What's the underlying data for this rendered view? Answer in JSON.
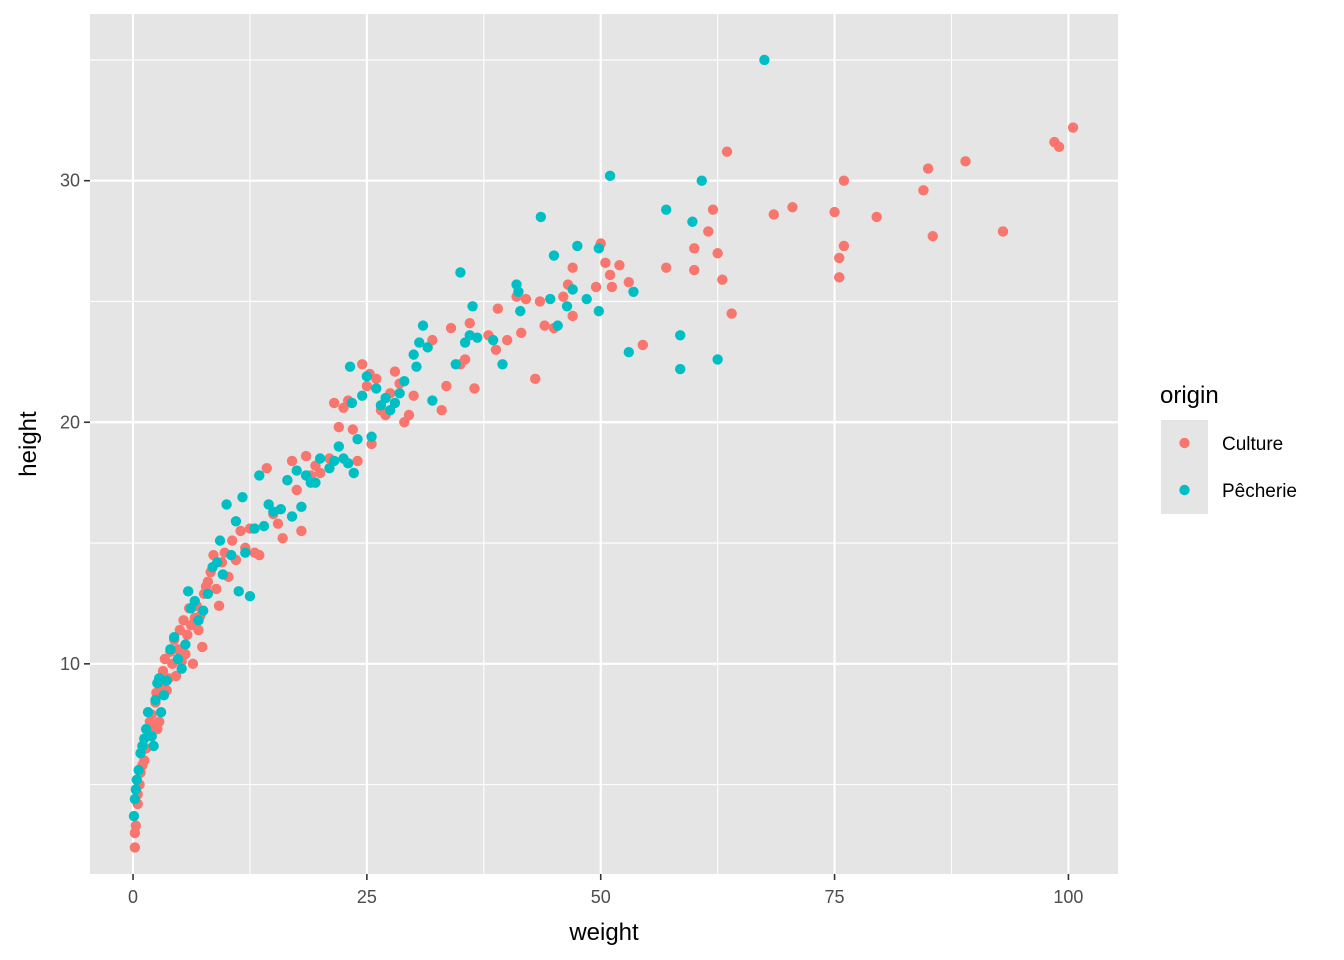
{
  "chart_data": {
    "type": "scatter",
    "xlabel": "weight",
    "ylabel": "height",
    "xlim": [
      -4.6,
      105.3
    ],
    "ylim": [
      1.3,
      36.9
    ],
    "x_ticks": [
      0,
      25,
      50,
      75,
      100
    ],
    "x_tick_labels": [
      "0",
      "25",
      "50",
      "75",
      "100"
    ],
    "y_ticks": [
      10,
      20,
      30
    ],
    "y_tick_labels": [
      "10",
      "20",
      "30"
    ],
    "x_minor_ticks": [
      12.5,
      37.5,
      62.5,
      87.5
    ],
    "y_minor_ticks": [
      5,
      15,
      25,
      35
    ],
    "grid": true,
    "background": "#e5e5e5",
    "legend": {
      "title": "origin",
      "placement": "right",
      "entries": [
        {
          "label": "Culture",
          "color": "#f8766d"
        },
        {
          "label": "Pêcherie",
          "color": "#00bfc4"
        }
      ]
    },
    "series": [
      {
        "name": "Culture",
        "color": "#f8766d",
        "points": [
          [
            0.2,
            2.4
          ],
          [
            0.2,
            3.0
          ],
          [
            0.3,
            3.3
          ],
          [
            0.5,
            4.2
          ],
          [
            0.5,
            4.6
          ],
          [
            0.7,
            5.0
          ],
          [
            0.8,
            5.5
          ],
          [
            1.0,
            5.8
          ],
          [
            1.2,
            6.0
          ],
          [
            1.4,
            6.5
          ],
          [
            1.6,
            7.3
          ],
          [
            1.8,
            7.6
          ],
          [
            2.0,
            7.9
          ],
          [
            2.2,
            7.4
          ],
          [
            2.4,
            8.4
          ],
          [
            2.5,
            8.8
          ],
          [
            2.6,
            7.3
          ],
          [
            2.8,
            7.6
          ],
          [
            3.0,
            9.0
          ],
          [
            3.2,
            9.7
          ],
          [
            3.4,
            10.2
          ],
          [
            3.6,
            8.9
          ],
          [
            3.8,
            9.4
          ],
          [
            4.0,
            10.5
          ],
          [
            4.2,
            10.0
          ],
          [
            4.4,
            11.0
          ],
          [
            4.6,
            9.5
          ],
          [
            4.8,
            10.6
          ],
          [
            5.0,
            11.4
          ],
          [
            5.2,
            10.1
          ],
          [
            5.4,
            11.8
          ],
          [
            5.6,
            10.4
          ],
          [
            5.8,
            11.2
          ],
          [
            6.0,
            12.3
          ],
          [
            6.2,
            11.6
          ],
          [
            6.4,
            10.0
          ],
          [
            6.6,
            11.9
          ],
          [
            6.8,
            12.4
          ],
          [
            7.0,
            11.4
          ],
          [
            7.2,
            12.0
          ],
          [
            7.4,
            10.7
          ],
          [
            7.6,
            12.9
          ],
          [
            7.8,
            13.2
          ],
          [
            8.0,
            13.4
          ],
          [
            8.3,
            13.8
          ],
          [
            8.6,
            14.5
          ],
          [
            8.9,
            13.1
          ],
          [
            9.2,
            12.4
          ],
          [
            9.5,
            14.2
          ],
          [
            9.8,
            14.6
          ],
          [
            10.2,
            13.6
          ],
          [
            10.6,
            15.1
          ],
          [
            11.0,
            14.3
          ],
          [
            11.5,
            15.5
          ],
          [
            12.0,
            14.8
          ],
          [
            12.5,
            15.6
          ],
          [
            13.0,
            14.6
          ],
          [
            13.5,
            14.5
          ],
          [
            14.3,
            18.1
          ],
          [
            15.0,
            16.2
          ],
          [
            15.5,
            15.8
          ],
          [
            16.0,
            15.2
          ],
          [
            16.5,
            17.6
          ],
          [
            17.0,
            18.4
          ],
          [
            17.5,
            17.2
          ],
          [
            18.0,
            15.5
          ],
          [
            18.5,
            18.6
          ],
          [
            19.0,
            17.8
          ],
          [
            19.5,
            18.2
          ],
          [
            20.0,
            17.9
          ],
          [
            21.0,
            18.5
          ],
          [
            21.5,
            20.8
          ],
          [
            22.0,
            19.8
          ],
          [
            22.5,
            20.6
          ],
          [
            23.0,
            20.9
          ],
          [
            23.5,
            19.7
          ],
          [
            24.0,
            18.4
          ],
          [
            24.5,
            22.4
          ],
          [
            25.0,
            21.5
          ],
          [
            25.3,
            22.0
          ],
          [
            25.5,
            19.1
          ],
          [
            26.0,
            21.8
          ],
          [
            26.5,
            20.5
          ],
          [
            27.0,
            20.3
          ],
          [
            27.5,
            21.2
          ],
          [
            28.0,
            22.1
          ],
          [
            28.5,
            21.6
          ],
          [
            29.0,
            20.0
          ],
          [
            29.5,
            20.3
          ],
          [
            30.0,
            21.1
          ],
          [
            32.0,
            23.4
          ],
          [
            33.0,
            20.5
          ],
          [
            33.5,
            21.5
          ],
          [
            34.0,
            23.9
          ],
          [
            35.0,
            22.4
          ],
          [
            35.5,
            22.6
          ],
          [
            36.0,
            24.1
          ],
          [
            36.5,
            21.4
          ],
          [
            38.0,
            23.6
          ],
          [
            38.8,
            23.0
          ],
          [
            39.0,
            24.7
          ],
          [
            40.0,
            23.4
          ],
          [
            41.0,
            25.2
          ],
          [
            41.5,
            23.7
          ],
          [
            42.0,
            25.1
          ],
          [
            43.0,
            21.8
          ],
          [
            43.5,
            25.0
          ],
          [
            44.0,
            24.0
          ],
          [
            45.0,
            23.9
          ],
          [
            46.0,
            25.2
          ],
          [
            46.5,
            25.7
          ],
          [
            47.0,
            26.4
          ],
          [
            47.0,
            24.4
          ],
          [
            49.5,
            25.6
          ],
          [
            50.0,
            27.4
          ],
          [
            50.5,
            26.6
          ],
          [
            51.0,
            26.1
          ],
          [
            51.2,
            25.6
          ],
          [
            52.0,
            26.5
          ],
          [
            53.0,
            25.8
          ],
          [
            54.5,
            23.2
          ],
          [
            57.0,
            26.4
          ],
          [
            60.0,
            27.2
          ],
          [
            60.0,
            26.3
          ],
          [
            61.5,
            27.9
          ],
          [
            62.0,
            28.8
          ],
          [
            62.5,
            27.0
          ],
          [
            63.0,
            25.9
          ],
          [
            63.5,
            31.2
          ],
          [
            64.0,
            24.5
          ],
          [
            68.5,
            28.6
          ],
          [
            70.5,
            28.9
          ],
          [
            75.0,
            28.7
          ],
          [
            75.5,
            26.8
          ],
          [
            75.5,
            26.0
          ],
          [
            76.0,
            30.0
          ],
          [
            76.0,
            27.3
          ],
          [
            79.5,
            28.5
          ],
          [
            84.5,
            29.6
          ],
          [
            85.0,
            30.5
          ],
          [
            85.5,
            27.7
          ],
          [
            89.0,
            30.8
          ],
          [
            93.0,
            27.9
          ],
          [
            98.5,
            31.6
          ],
          [
            99.0,
            31.4
          ],
          [
            100.5,
            32.2
          ]
        ]
      },
      {
        "name": "Pêcherie",
        "color": "#00bfc4",
        "points": [
          [
            0.1,
            3.7
          ],
          [
            0.2,
            4.4
          ],
          [
            0.3,
            4.8
          ],
          [
            0.4,
            5.2
          ],
          [
            0.6,
            5.6
          ],
          [
            0.8,
            6.3
          ],
          [
            1.0,
            6.6
          ],
          [
            1.2,
            6.9
          ],
          [
            1.4,
            7.3
          ],
          [
            1.6,
            8.0
          ],
          [
            2.0,
            7.0
          ],
          [
            2.2,
            6.6
          ],
          [
            2.4,
            8.5
          ],
          [
            2.6,
            9.2
          ],
          [
            2.8,
            9.4
          ],
          [
            3.0,
            8.0
          ],
          [
            3.3,
            8.7
          ],
          [
            3.6,
            9.3
          ],
          [
            4.0,
            10.6
          ],
          [
            4.4,
            11.1
          ],
          [
            4.8,
            10.2
          ],
          [
            5.2,
            9.8
          ],
          [
            5.6,
            10.8
          ],
          [
            5.9,
            13.0
          ],
          [
            6.2,
            12.3
          ],
          [
            6.6,
            12.6
          ],
          [
            7.0,
            11.8
          ],
          [
            7.5,
            12.2
          ],
          [
            8.0,
            12.9
          ],
          [
            8.5,
            14.0
          ],
          [
            9.0,
            14.2
          ],
          [
            9.3,
            15.1
          ],
          [
            9.6,
            13.7
          ],
          [
            10.0,
            16.6
          ],
          [
            10.5,
            14.5
          ],
          [
            11.0,
            15.9
          ],
          [
            11.3,
            13.0
          ],
          [
            11.7,
            16.9
          ],
          [
            12.0,
            14.6
          ],
          [
            12.5,
            12.8
          ],
          [
            13.0,
            15.6
          ],
          [
            13.5,
            17.8
          ],
          [
            14.0,
            15.7
          ],
          [
            14.5,
            16.6
          ],
          [
            15.0,
            16.3
          ],
          [
            15.8,
            16.4
          ],
          [
            16.5,
            17.6
          ],
          [
            17.0,
            16.1
          ],
          [
            17.5,
            18.0
          ],
          [
            18.0,
            16.5
          ],
          [
            18.5,
            17.8
          ],
          [
            19.0,
            17.5
          ],
          [
            19.5,
            17.5
          ],
          [
            20.0,
            18.5
          ],
          [
            21.0,
            18.1
          ],
          [
            21.5,
            18.4
          ],
          [
            22.0,
            19.0
          ],
          [
            22.5,
            18.5
          ],
          [
            23.0,
            18.3
          ],
          [
            23.2,
            22.3
          ],
          [
            23.4,
            20.8
          ],
          [
            23.6,
            17.9
          ],
          [
            24.0,
            19.3
          ],
          [
            24.5,
            21.1
          ],
          [
            25.0,
            21.9
          ],
          [
            25.5,
            19.4
          ],
          [
            26.0,
            21.4
          ],
          [
            26.5,
            20.7
          ],
          [
            27.0,
            21.0
          ],
          [
            27.5,
            20.5
          ],
          [
            28.0,
            20.8
          ],
          [
            28.5,
            21.2
          ],
          [
            29.0,
            21.7
          ],
          [
            30.0,
            22.8
          ],
          [
            30.3,
            22.3
          ],
          [
            30.6,
            23.3
          ],
          [
            31.0,
            24.0
          ],
          [
            31.5,
            23.1
          ],
          [
            32.0,
            20.9
          ],
          [
            34.5,
            22.4
          ],
          [
            35.0,
            26.2
          ],
          [
            35.5,
            23.3
          ],
          [
            36.0,
            23.6
          ],
          [
            36.3,
            24.8
          ],
          [
            36.8,
            23.5
          ],
          [
            38.5,
            23.4
          ],
          [
            39.5,
            22.4
          ],
          [
            41.0,
            25.7
          ],
          [
            41.2,
            25.4
          ],
          [
            41.4,
            24.6
          ],
          [
            43.6,
            28.5
          ],
          [
            44.6,
            25.1
          ],
          [
            45.0,
            26.9
          ],
          [
            45.4,
            24.0
          ],
          [
            46.4,
            24.8
          ],
          [
            47.0,
            25.5
          ],
          [
            47.5,
            27.3
          ],
          [
            48.5,
            25.1
          ],
          [
            49.8,
            27.2
          ],
          [
            49.8,
            24.6
          ],
          [
            51.0,
            30.2
          ],
          [
            53.0,
            22.9
          ],
          [
            53.5,
            25.4
          ],
          [
            57.0,
            28.8
          ],
          [
            58.5,
            23.6
          ],
          [
            58.5,
            22.2
          ],
          [
            59.8,
            28.3
          ],
          [
            60.8,
            30.0
          ],
          [
            62.5,
            22.6
          ],
          [
            67.5,
            35.0
          ]
        ]
      }
    ]
  }
}
